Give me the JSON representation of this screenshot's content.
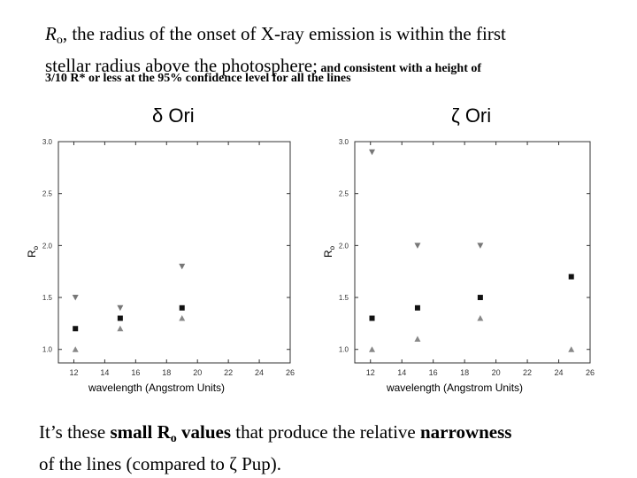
{
  "heading": {
    "r_symbol": "R",
    "r_sub": "o",
    "line1_rest": ", the radius of the onset of X-ray emission is within the first",
    "line2_main": "stellar radius above the photosphere;",
    "line2_small": " and consistent with a height of",
    "line3": "3/10 R* or less at the 95% confidence level for all the lines"
  },
  "footer": {
    "part1": "It’s these ",
    "bold1": "small R",
    "bold1_sub": "o",
    "bold2": " values",
    "part2": " that produce the relative ",
    "bold3": "narrowness",
    "line2": "of the lines (compared to ζ Pup)."
  },
  "chart_data": [
    {
      "type": "scatter",
      "title": "δ Ori",
      "xlabel": "wavelength (Angstrom Units)",
      "ylabel": "R",
      "ylabel_sub": "o",
      "xlim": [
        11,
        26
      ],
      "ylim": [
        0.87,
        3.0
      ],
      "xticks": [
        12,
        14,
        16,
        18,
        20,
        22,
        24,
        26
      ],
      "yticks": [
        1.0,
        1.5,
        2.0,
        2.5,
        3.0
      ],
      "ytick_labels": [
        "1.0",
        "1.5",
        "2.0",
        "2.5",
        "3.0"
      ],
      "grid": false,
      "series": [
        {
          "marker": "square",
          "x": [
            12.1,
            15.0,
            19.0
          ],
          "y": [
            1.2,
            1.3,
            1.4
          ]
        },
        {
          "marker": "triangle-down",
          "x": [
            12.1,
            15.0,
            19.0
          ],
          "y": [
            1.5,
            1.4,
            1.8
          ]
        },
        {
          "marker": "triangle-up",
          "x": [
            12.1,
            15.0,
            19.0
          ],
          "y": [
            1.0,
            1.2,
            1.3
          ]
        }
      ]
    },
    {
      "type": "scatter",
      "title": "ζ Ori",
      "xlabel": "wavelength (Angstrom Units)",
      "ylabel": "R",
      "ylabel_sub": "o",
      "xlim": [
        11,
        26
      ],
      "ylim": [
        0.87,
        3.0
      ],
      "xticks": [
        12,
        14,
        16,
        18,
        20,
        22,
        24,
        26
      ],
      "yticks": [
        1.0,
        1.5,
        2.0,
        2.5,
        3.0
      ],
      "ytick_labels": [
        "1.0",
        "1.5",
        "2.0",
        "2.5",
        "3.0"
      ],
      "grid": false,
      "series": [
        {
          "marker": "square",
          "x": [
            12.1,
            15.0,
            19.0,
            24.8
          ],
          "y": [
            1.3,
            1.4,
            1.5,
            1.7
          ]
        },
        {
          "marker": "triangle-down",
          "x": [
            12.1,
            15.0,
            19.0
          ],
          "y": [
            2.9,
            2.0,
            2.0
          ]
        },
        {
          "marker": "triangle-up",
          "x": [
            12.1,
            15.0,
            19.0,
            24.8
          ],
          "y": [
            1.0,
            1.1,
            1.3,
            1.0
          ]
        }
      ]
    }
  ]
}
